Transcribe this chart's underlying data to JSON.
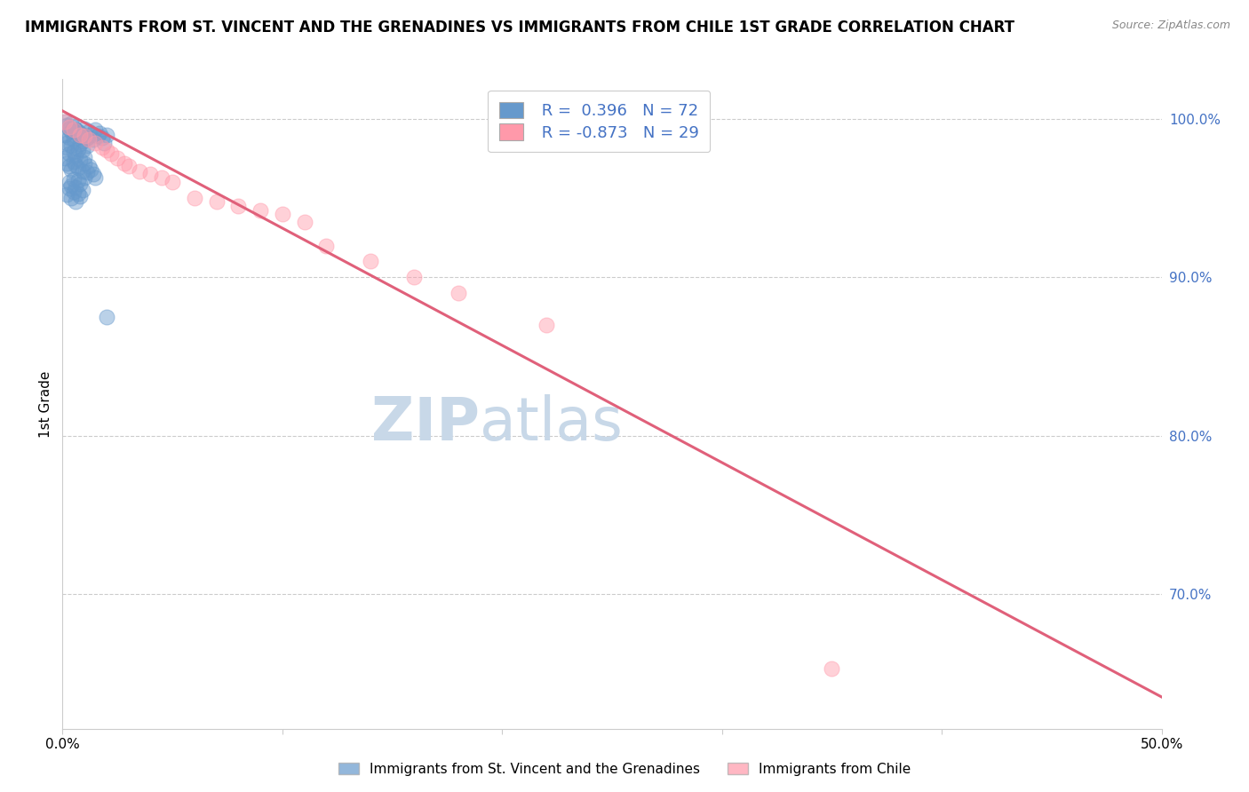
{
  "title": "IMMIGRANTS FROM ST. VINCENT AND THE GRENADINES VS IMMIGRANTS FROM CHILE 1ST GRADE CORRELATION CHART",
  "source": "Source: ZipAtlas.com",
  "ylabel": "1st Grade",
  "xlim": [
    0.0,
    0.5
  ],
  "ylim": [
    0.615,
    1.025
  ],
  "ytick_right_vals": [
    1.0,
    0.9,
    0.8,
    0.7
  ],
  "ytick_right_labels": [
    "100.0%",
    "90.0%",
    "80.0%",
    "70.0%"
  ],
  "blue_color": "#6699CC",
  "pink_color": "#FF99AA",
  "blue_R": 0.396,
  "blue_N": 72,
  "pink_R": -0.873,
  "pink_N": 29,
  "blue_scatter_x": [
    0.001,
    0.002,
    0.003,
    0.004,
    0.005,
    0.006,
    0.007,
    0.008,
    0.009,
    0.01,
    0.011,
    0.012,
    0.013,
    0.014,
    0.015,
    0.016,
    0.017,
    0.018,
    0.019,
    0.02,
    0.002,
    0.003,
    0.004,
    0.005,
    0.006,
    0.007,
    0.008,
    0.009,
    0.01,
    0.011,
    0.001,
    0.002,
    0.003,
    0.004,
    0.005,
    0.006,
    0.007,
    0.008,
    0.009,
    0.01,
    0.011,
    0.012,
    0.013,
    0.014,
    0.015,
    0.003,
    0.004,
    0.005,
    0.006,
    0.007,
    0.008,
    0.009,
    0.01,
    0.002,
    0.003,
    0.004,
    0.005,
    0.006,
    0.007,
    0.008,
    0.001,
    0.002,
    0.003,
    0.004,
    0.005,
    0.006,
    0.007,
    0.008,
    0.009,
    0.01,
    0.011,
    0.02
  ],
  "blue_scatter_y": [
    0.99,
    0.985,
    0.988,
    0.992,
    0.987,
    0.993,
    0.991,
    0.989,
    0.986,
    0.994,
    0.988,
    0.992,
    0.99,
    0.987,
    0.993,
    0.989,
    0.991,
    0.988,
    0.985,
    0.99,
    0.982,
    0.978,
    0.983,
    0.979,
    0.977,
    0.981,
    0.984,
    0.98,
    0.976,
    0.983,
    0.975,
    0.972,
    0.97,
    0.968,
    0.973,
    0.971,
    0.969,
    0.974,
    0.967,
    0.972,
    0.966,
    0.97,
    0.968,
    0.965,
    0.963,
    0.96,
    0.958,
    0.962,
    0.957,
    0.961,
    0.959,
    0.955,
    0.963,
    0.952,
    0.956,
    0.95,
    0.954,
    0.948,
    0.953,
    0.951,
    0.998,
    0.996,
    0.994,
    0.997,
    0.995,
    0.993,
    0.992,
    0.991,
    0.99,
    0.989,
    0.988,
    0.875
  ],
  "pink_scatter_x": [
    0.001,
    0.005,
    0.01,
    0.015,
    0.02,
    0.025,
    0.03,
    0.035,
    0.04,
    0.05,
    0.06,
    0.08,
    0.1,
    0.12,
    0.14,
    0.003,
    0.008,
    0.012,
    0.018,
    0.022,
    0.028,
    0.045,
    0.07,
    0.09,
    0.11,
    0.16,
    0.18,
    0.35,
    0.22
  ],
  "pink_scatter_y": [
    0.998,
    0.993,
    0.989,
    0.985,
    0.98,
    0.975,
    0.97,
    0.967,
    0.965,
    0.96,
    0.95,
    0.945,
    0.94,
    0.92,
    0.91,
    0.995,
    0.99,
    0.987,
    0.982,
    0.978,
    0.972,
    0.963,
    0.948,
    0.942,
    0.935,
    0.9,
    0.89,
    0.653,
    0.87
  ],
  "pink_line_x": [
    0.0,
    0.5
  ],
  "pink_line_y": [
    1.005,
    0.635
  ],
  "watermark1": "ZIP",
  "watermark2": "atlas",
  "watermark_color": "#C8D8E8",
  "legend_text_color": "#4472C4"
}
